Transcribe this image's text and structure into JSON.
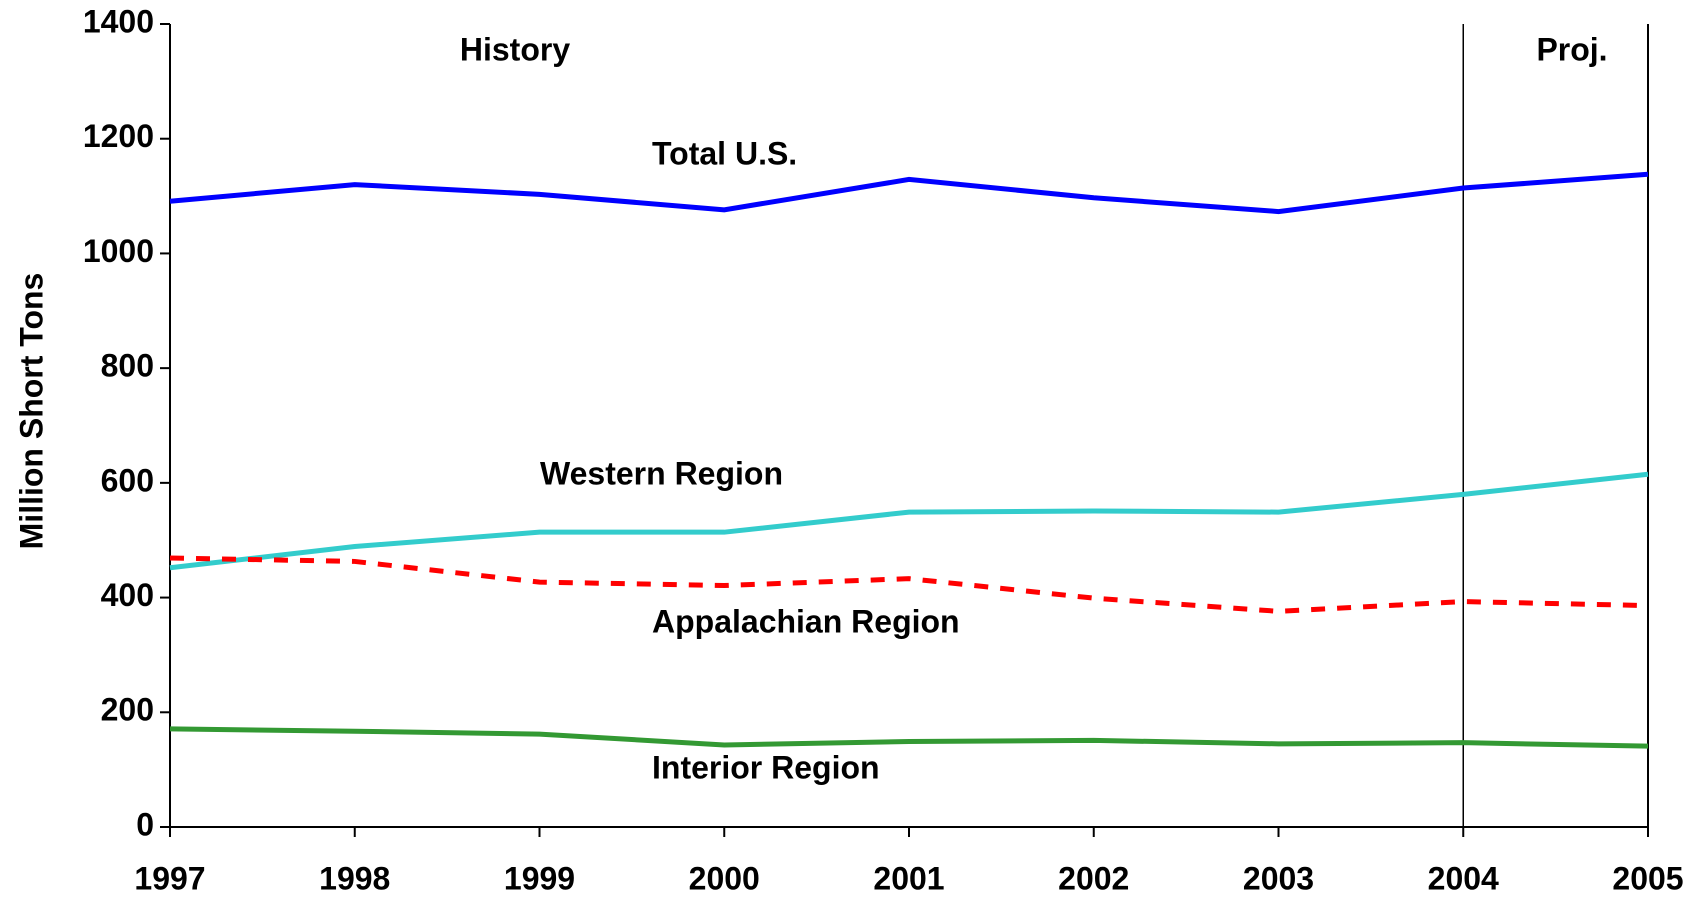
{
  "chart_data": {
    "type": "line",
    "y_label": "Million Short Tons",
    "x": [
      1997,
      1998,
      1999,
      2000,
      2001,
      2002,
      2003,
      2004,
      2005
    ],
    "xlim": [
      1997,
      2005
    ],
    "xticks": [
      1997,
      1998,
      1999,
      2000,
      2001,
      2002,
      2003,
      2004,
      2005
    ],
    "ylim": [
      0,
      1400
    ],
    "yticks": [
      0,
      200,
      400,
      600,
      800,
      1000,
      1200,
      1400
    ],
    "grid": false,
    "projection_start": 2004,
    "annotations": [
      "History",
      "Proj."
    ],
    "series": [
      {
        "name": "Total U.S.",
        "color": "#0000ff",
        "dashed": false,
        "values": [
          1091,
          1120,
          1103,
          1076,
          1129,
          1097,
          1073,
          1114,
          1138
        ]
      },
      {
        "name": "Western Region",
        "color": "#33cccc",
        "dashed": false,
        "values": [
          452,
          489,
          514,
          514,
          549,
          551,
          549,
          580,
          615
        ]
      },
      {
        "name": "Appalachian Region",
        "color": "#ff0000",
        "dashed": true,
        "values": [
          469,
          463,
          427,
          421,
          433,
          399,
          376,
          393,
          386
        ]
      },
      {
        "name": "Interior Region",
        "color": "#339933",
        "dashed": false,
        "values": [
          171,
          167,
          162,
          143,
          149,
          151,
          145,
          147,
          141
        ]
      }
    ]
  }
}
